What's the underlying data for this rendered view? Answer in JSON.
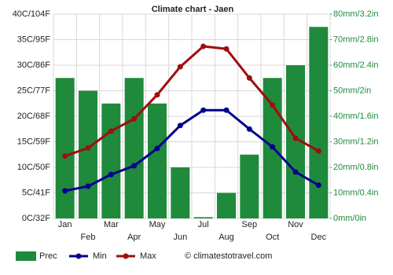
{
  "chart_data": {
    "type": "combo",
    "title": "Climate chart - Jaen",
    "categories": [
      "Jan",
      "Feb",
      "Mar",
      "Apr",
      "May",
      "Jun",
      "Jul",
      "Aug",
      "Sep",
      "Oct",
      "Nov",
      "Dec"
    ],
    "series": [
      {
        "name": "Prec",
        "type": "bar",
        "axis": "y2",
        "color": "#1f8a3b",
        "values": [
          55,
          50,
          45,
          55,
          45,
          20,
          0.5,
          10,
          25,
          55,
          60,
          75
        ]
      },
      {
        "name": "Min",
        "type": "line",
        "color": "#00008b",
        "values": [
          5.4,
          6.3,
          8.6,
          10.3,
          13.7,
          18.2,
          21.2,
          21.2,
          17.5,
          14.0,
          9.1,
          6.5
        ]
      },
      {
        "name": "Max",
        "type": "line",
        "color": "#a00d0d",
        "values": [
          12.2,
          13.8,
          17.1,
          19.5,
          24.2,
          29.7,
          33.7,
          33.2,
          27.5,
          22.2,
          15.7,
          13.2
        ]
      }
    ],
    "ylim": [
      0,
      40
    ],
    "yticks": [
      {
        "value": 0,
        "label": "0C/32F"
      },
      {
        "value": 5,
        "label": "5C/41F"
      },
      {
        "value": 10,
        "label": "10C/50F"
      },
      {
        "value": 15,
        "label": "15C/59F"
      },
      {
        "value": 20,
        "label": "20C/68F"
      },
      {
        "value": 25,
        "label": "25C/77F"
      },
      {
        "value": 30,
        "label": "30C/86F"
      },
      {
        "value": 35,
        "label": "35C/95F"
      },
      {
        "value": 40,
        "label": "40C/104F"
      }
    ],
    "y2lim": [
      0,
      80
    ],
    "y2ticks": [
      {
        "value": 0,
        "label": "0mm/0in"
      },
      {
        "value": 10,
        "label": "10mm/0.4in"
      },
      {
        "value": 20,
        "label": "20mm/0.8in"
      },
      {
        "value": 30,
        "label": "30mm/1.2in"
      },
      {
        "value": 40,
        "label": "40mm/1.6in"
      },
      {
        "value": 50,
        "label": "50mm/2in"
      },
      {
        "value": 60,
        "label": "60mm/2.4in"
      },
      {
        "value": 70,
        "label": "70mm/2.8in"
      },
      {
        "value": 80,
        "label": "80mm/3.2in"
      }
    ],
    "grid": true,
    "credit": "© climatestotravel.com"
  }
}
